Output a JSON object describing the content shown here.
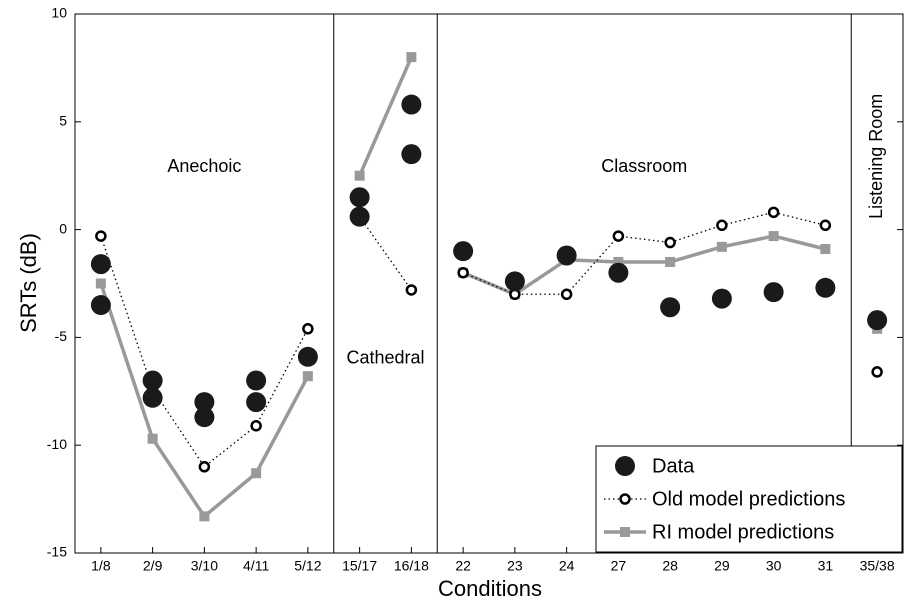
{
  "chart_data": {
    "type": "line",
    "xlabel": "Conditions",
    "ylabel": "SRTs (dB)",
    "categories": [
      "1/8",
      "2/9",
      "3/10",
      "4/11",
      "5/12",
      "15/17",
      "16/18",
      "22",
      "23",
      "24",
      "27",
      "28",
      "29",
      "30",
      "31",
      "35/38"
    ],
    "regions": [
      {
        "label": "Anechoic",
        "span": 5
      },
      {
        "label": "Cathedral",
        "span": 2
      },
      {
        "label": "Classroom",
        "span": 8
      },
      {
        "label": "Listening Room",
        "span": 1
      }
    ],
    "ylim": [
      -15,
      10
    ],
    "yticks": [
      -15,
      -10,
      -5,
      0,
      5,
      10
    ],
    "legend": "lower right",
    "series": [
      {
        "name": "Data",
        "color": "#1a1a1a",
        "style": "dots",
        "values": [
          [
            -1.6,
            -3.5
          ],
          [
            -7.0,
            -7.8
          ],
          [
            -8.0,
            -8.7
          ],
          [
            -7.0,
            -8.0
          ],
          [
            -5.9
          ],
          [
            1.5,
            0.6
          ],
          [
            5.8,
            3.5
          ],
          [
            -1.0
          ],
          [
            -2.4
          ],
          [
            -1.2
          ],
          [
            -2.0
          ],
          [
            -3.6
          ],
          [
            -3.2
          ],
          [
            -2.9
          ],
          [
            -2.7
          ],
          [
            -4.2
          ]
        ]
      },
      {
        "name": "Old model predictions",
        "color": "#000000",
        "style": "dotted",
        "values": [
          -0.3,
          -7.4,
          -11.0,
          -9.1,
          -4.6,
          0.6,
          -2.8,
          -2.0,
          -3.0,
          -3.0,
          -0.3,
          -0.6,
          0.2,
          0.8,
          0.2,
          -6.6
        ]
      },
      {
        "name": "RI model predictions",
        "color": "#999999",
        "style": "solid",
        "values": [
          -2.5,
          -9.7,
          -13.3,
          -11.3,
          -6.8,
          2.5,
          8.0,
          -2.0,
          -3.0,
          -1.4,
          -1.5,
          -1.5,
          -0.8,
          -0.3,
          -0.9,
          -4.6
        ]
      }
    ]
  }
}
